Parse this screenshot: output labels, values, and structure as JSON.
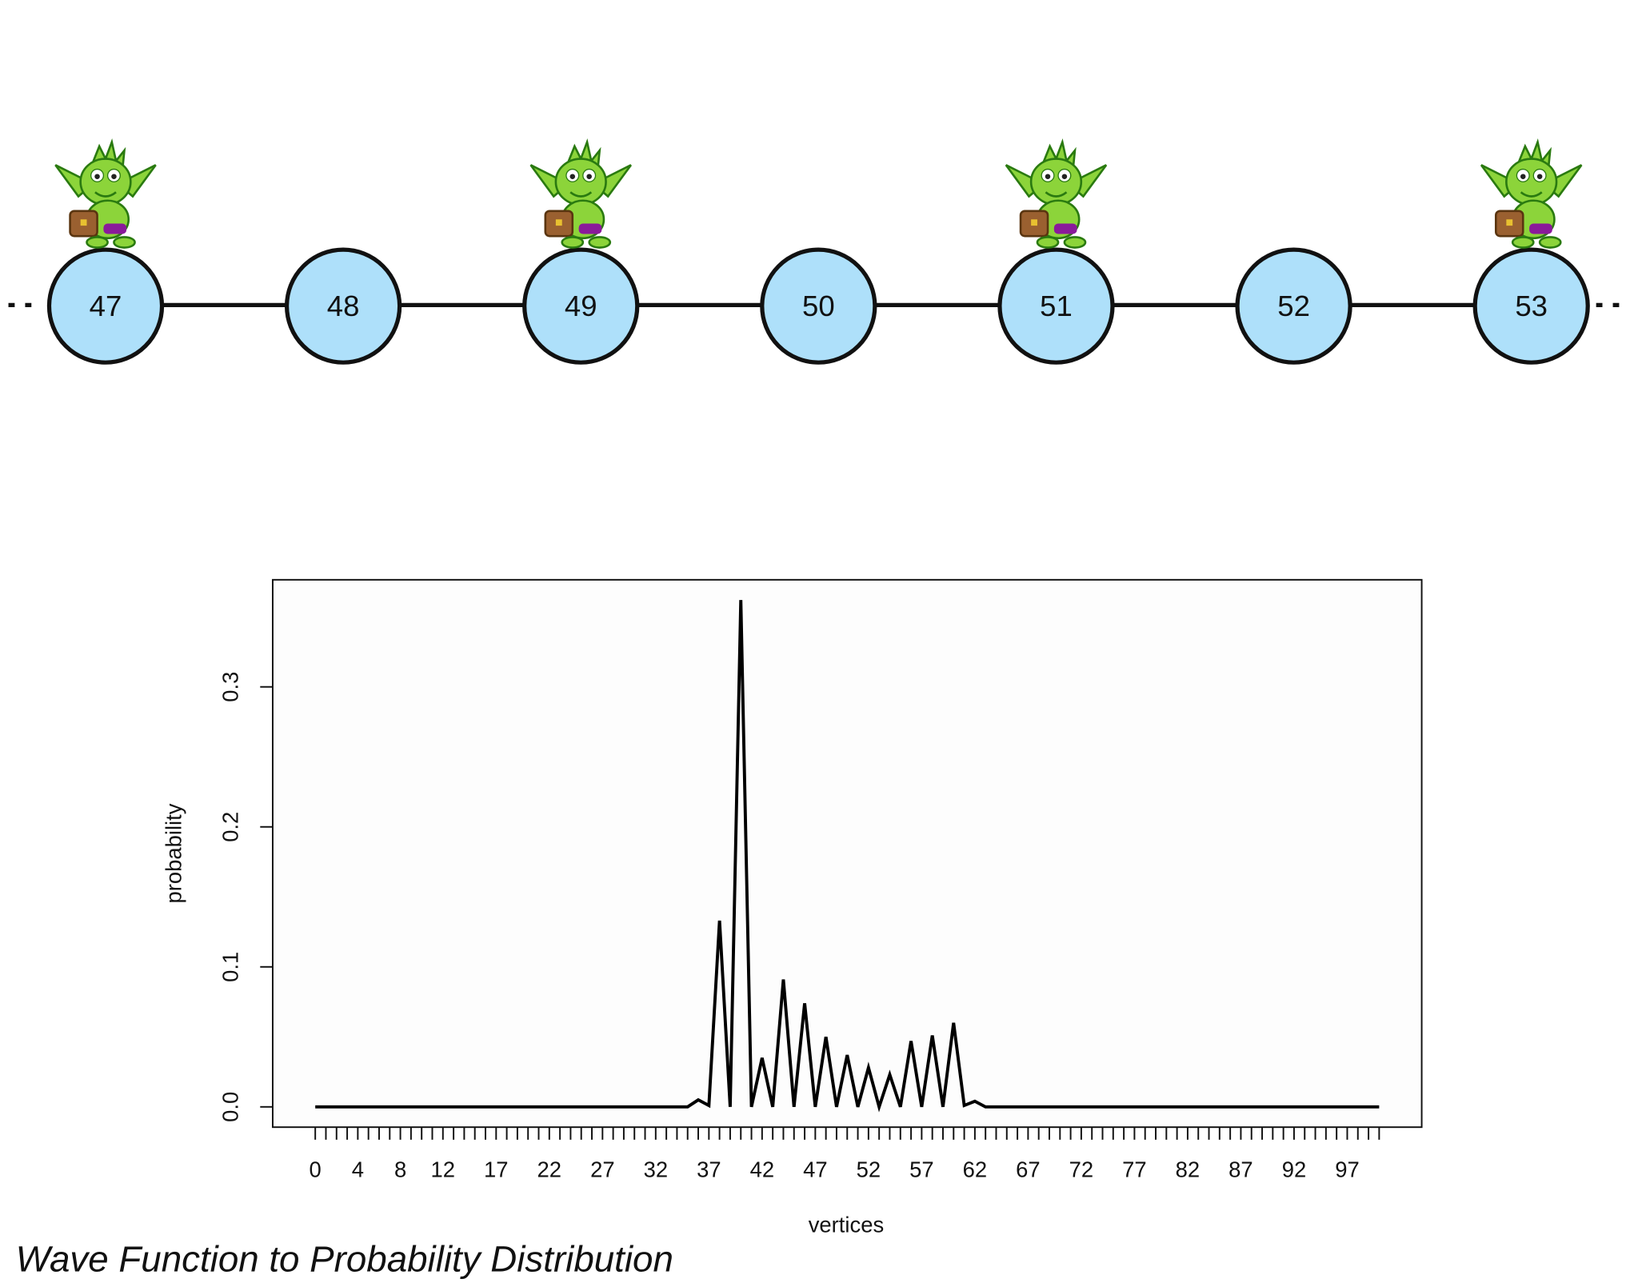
{
  "diagram": {
    "nodes": [
      "47",
      "48",
      "49",
      "50",
      "51",
      "52",
      "53"
    ]
  },
  "chart_data": {
    "type": "line",
    "categories": [
      "0",
      null,
      null,
      null,
      "4",
      null,
      null,
      null,
      "8",
      null,
      null,
      null,
      "12",
      null,
      null,
      null,
      null,
      "17",
      null,
      null,
      null,
      null,
      "22",
      null,
      null,
      null,
      null,
      "27",
      null,
      null,
      null,
      null,
      "32",
      null,
      null,
      null,
      null,
      "37",
      null,
      null,
      null,
      null,
      "42",
      null,
      null,
      null,
      null,
      "47",
      null,
      null,
      null,
      null,
      "52",
      null,
      null,
      null,
      null,
      "57",
      null,
      null,
      null,
      null,
      "62",
      null,
      null,
      null,
      null,
      "67",
      null,
      null,
      null,
      null,
      "72",
      null,
      null,
      null,
      null,
      "77",
      null,
      null,
      null,
      null,
      "82",
      null,
      null,
      null,
      null,
      "87",
      null,
      null,
      null,
      null,
      "92",
      null,
      null,
      null,
      null,
      "97",
      null,
      null,
      null
    ],
    "values": [
      0,
      0,
      0,
      0,
      0,
      0,
      0,
      0,
      0,
      0,
      0,
      0,
      0,
      0,
      0,
      0,
      0,
      0,
      0,
      0,
      0,
      0,
      0,
      0,
      0,
      0,
      0,
      0,
      0,
      0,
      0,
      0,
      0,
      0,
      0,
      0,
      0.005,
      0.001,
      0.133,
      0,
      0.362,
      0,
      0.035,
      0,
      0.091,
      0,
      0.074,
      0,
      0.05,
      0,
      0.037,
      0,
      0.028,
      0,
      0.023,
      0,
      0.047,
      0,
      0.051,
      0,
      0.06,
      0.001,
      0.004,
      0,
      0,
      0,
      0,
      0,
      0,
      0,
      0,
      0,
      0,
      0,
      0,
      0,
      0,
      0,
      0,
      0,
      0,
      0,
      0,
      0,
      0,
      0,
      0,
      0,
      0,
      0,
      0,
      0,
      0,
      0,
      0,
      0,
      0,
      0,
      0,
      0,
      0
    ],
    "color": "#000000",
    "xlim": [
      -4,
      104
    ],
    "ylim": [
      -0.0145,
      0.3765
    ],
    "yticks": [
      {
        "value": 0,
        "label": "0.0"
      },
      0.1,
      0.2,
      0.3
    ],
    "x_label": "vertices",
    "y_label": "probability"
  },
  "caption": "Wave Function to Probability Distribution"
}
